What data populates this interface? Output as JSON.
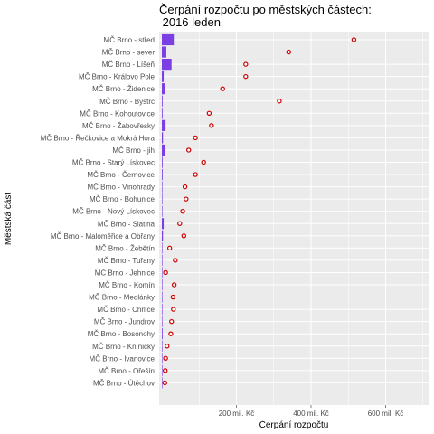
{
  "chart_data": {
    "type": "bar",
    "title": [
      "Čerpání rozpočtu po městských částech:",
      " 2016 leden"
    ],
    "xlabel": "Čerpání rozpočtu",
    "ylabel": "Městská část",
    "xlim": [
      0,
      720
    ],
    "xticks": [
      {
        "value": 200,
        "label": "200 mil. Kč"
      },
      {
        "value": 400,
        "label": "400 mil. Kč"
      },
      {
        "value": 600,
        "label": "600 mil. Kč"
      }
    ],
    "grid": true,
    "colors": {
      "bar": "#7b3fe4",
      "point": "#cc0000",
      "panel": "#ebebeb",
      "grid": "#ffffff"
    },
    "categories": [
      "MČ Brno - střed",
      "MČ Brno - sever",
      "MČ Brno - Líšeň",
      "MČ Brno - Královo Pole",
      "MČ Brno - Židenice",
      "MČ Brno - Bystrc",
      "MČ Brno - Kohoutovice",
      "MČ Brno - Žabovřesky",
      "MČ Brno - Řečkovice a Mokrá Hora",
      "MČ Brno - jih",
      "MČ Brno - Starý Lískovec",
      "MČ Brno - Černovice",
      "MČ Brno - Vinohrady",
      "MČ Brno - Bohunice",
      "MČ Brno - Nový Lískovec",
      "MČ Brno - Slatina",
      "MČ Brno - Maloměřice a Obřany",
      "MČ Brno - Žebětín",
      "MČ Brno - Tuřany",
      "MČ Brno - Jehnice",
      "MČ Brno - Komín",
      "MČ Brno - Medlánky",
      "MČ Brno - Chrlice",
      "MČ Brno - Jundrov",
      "MČ Brno - Bosonohy",
      "MČ Brno - Kníničky",
      "MČ Brno - Ivanovice",
      "MČ Brno - Ořešín",
      "MČ Brno - Útěchov"
    ],
    "series": [
      {
        "values": [
          32,
          12,
          26,
          5,
          8,
          2,
          2,
          10,
          3,
          9,
          2,
          2,
          1,
          1,
          1,
          5,
          3,
          1,
          1,
          0.5,
          1,
          1,
          1,
          1,
          2,
          0.5,
          0.5,
          0.3,
          0.3
        ]
      },
      {
        "values": [
          515,
          340,
          225,
          225,
          163,
          315,
          127,
          133,
          90,
          72,
          112,
          90,
          62,
          65,
          56,
          48,
          59,
          21,
          36,
          10,
          33,
          30,
          31,
          26,
          24,
          14,
          10,
          9,
          8
        ]
      }
    ]
  }
}
